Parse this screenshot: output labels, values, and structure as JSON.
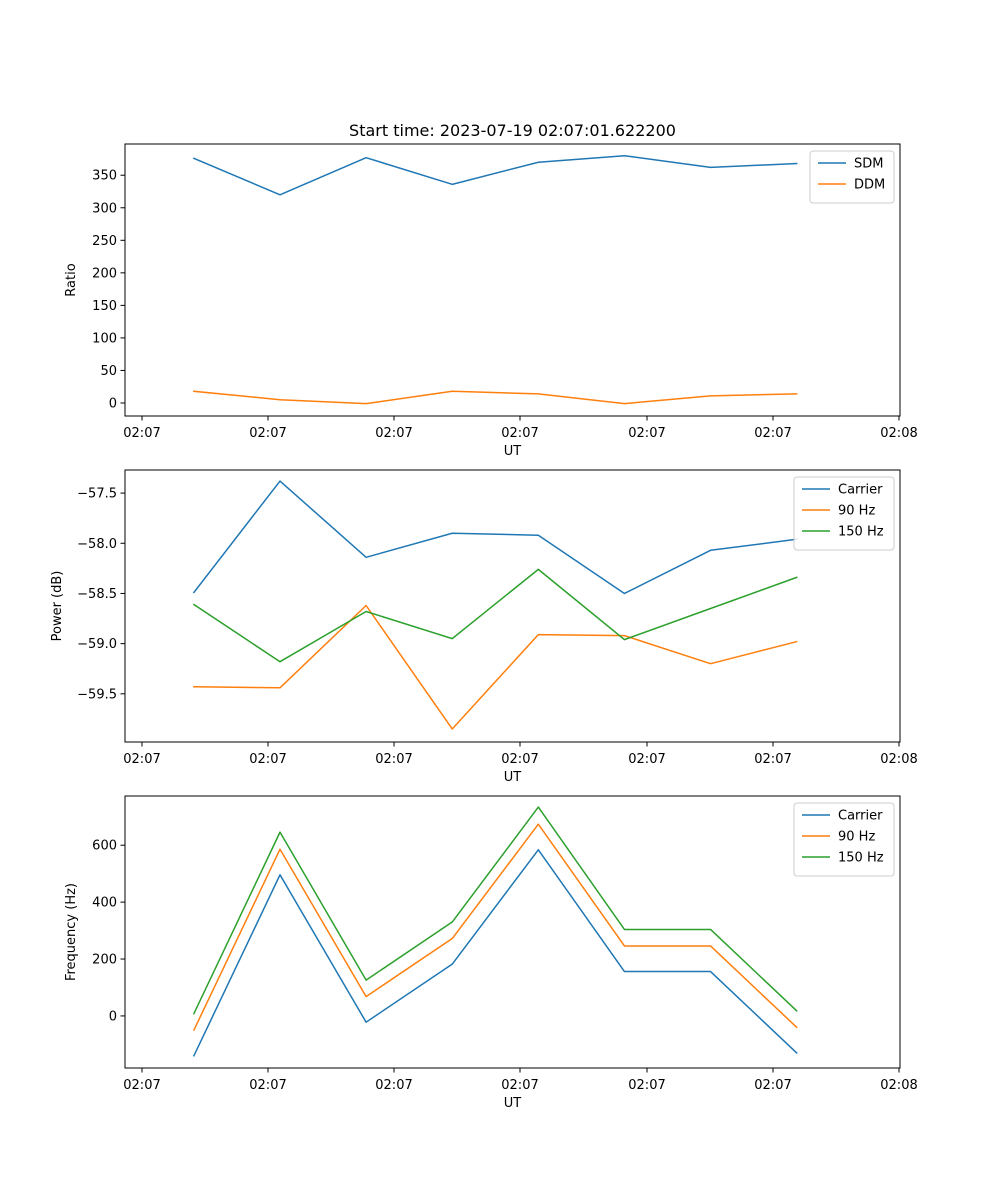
{
  "figure_title": "Start time: 2023-07-19 02:07:01.622200",
  "colors": {
    "blue": "#1f77b4",
    "orange": "#ff7f0e",
    "green": "#2ca02c"
  },
  "chart_data": [
    {
      "type": "line",
      "title": "Start time: 2023-07-19 02:07:01.622200",
      "xlabel": "UT",
      "ylabel": "Ratio",
      "x_ticks": [
        "02:07",
        "02:07",
        "02:07",
        "02:07",
        "02:07",
        "02:07",
        "02:08"
      ],
      "x": [
        1,
        2,
        3,
        4,
        5,
        6,
        7,
        8
      ],
      "xlim": [
        0.2,
        9.2
      ],
      "ylim": [
        -20,
        398
      ],
      "y_ticks": [
        0,
        50,
        100,
        150,
        200,
        250,
        300,
        350
      ],
      "y_tick_labels": [
        "0",
        "50",
        "100",
        "150",
        "200",
        "250",
        "300",
        "350"
      ],
      "legend_position": "top-right",
      "series": [
        {
          "name": "SDM",
          "color": "#1f77b4",
          "values": [
            376,
            320,
            377,
            336,
            370,
            380,
            362,
            368
          ]
        },
        {
          "name": "DDM",
          "color": "#ff7f0e",
          "values": [
            18,
            5,
            -1,
            18,
            14,
            -1,
            11,
            14
          ]
        }
      ]
    },
    {
      "type": "line",
      "title": "",
      "xlabel": "UT",
      "ylabel": "Power (dB)",
      "x_ticks": [
        "02:07",
        "02:07",
        "02:07",
        "02:07",
        "02:07",
        "02:07",
        "02:08"
      ],
      "x": [
        1,
        2,
        3,
        4,
        5,
        6,
        7,
        8
      ],
      "xlim": [
        0.2,
        9.2
      ],
      "ylim": [
        -59.98,
        -57.27
      ],
      "y_ticks": [
        -59.5,
        -59.0,
        -58.5,
        -58.0,
        -57.5
      ],
      "y_tick_labels": [
        "−59.5",
        "−59.0",
        "−58.5",
        "−58.0",
        "−57.5"
      ],
      "legend_position": "top-right",
      "series": [
        {
          "name": "Carrier",
          "color": "#1f77b4",
          "values": [
            -58.49,
            -57.38,
            -58.14,
            -57.9,
            -57.92,
            -58.5,
            -58.07,
            -57.96
          ]
        },
        {
          "name": "90 Hz",
          "color": "#ff7f0e",
          "values": [
            -59.43,
            -59.44,
            -58.62,
            -59.85,
            -58.91,
            -58.92,
            -59.2,
            -58.98
          ]
        },
        {
          "name": "150 Hz",
          "color": "#2ca02c",
          "values": [
            -58.61,
            -59.18,
            -58.68,
            -58.95,
            -58.26,
            -58.96,
            -58.65,
            -58.34
          ]
        }
      ]
    },
    {
      "type": "line",
      "title": "",
      "xlabel": "UT",
      "ylabel": "Frequency (Hz)",
      "x_ticks": [
        "02:07",
        "02:07",
        "02:07",
        "02:07",
        "02:07",
        "02:07",
        "02:08"
      ],
      "x": [
        1,
        2,
        3,
        4,
        5,
        6,
        7,
        8
      ],
      "xlim": [
        0.2,
        9.2
      ],
      "ylim": [
        -183,
        773
      ],
      "y_ticks": [
        0,
        200,
        400,
        600
      ],
      "y_tick_labels": [
        "0",
        "200",
        "400",
        "600"
      ],
      "legend_position": "top-right",
      "series": [
        {
          "name": "Carrier",
          "color": "#1f77b4",
          "values": [
            -140,
            496,
            -22,
            182,
            584,
            156,
            156,
            -130
          ]
        },
        {
          "name": "90 Hz",
          "color": "#ff7f0e",
          "values": [
            -50,
            586,
            68,
            272,
            674,
            246,
            246,
            -40
          ]
        },
        {
          "name": "150 Hz",
          "color": "#2ca02c",
          "values": [
            8,
            646,
            126,
            330,
            734,
            304,
            304,
            18
          ]
        }
      ]
    }
  ]
}
